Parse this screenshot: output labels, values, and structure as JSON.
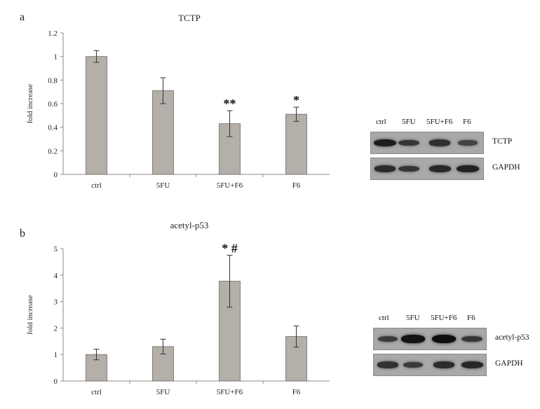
{
  "panels": [
    {
      "letter": "a",
      "chart_data": {
        "type": "bar",
        "title": "TCTP",
        "ylabel": "fold increase",
        "xlabel": "",
        "categories": [
          "ctrl",
          "5FU",
          "5FU+F6",
          "F6"
        ],
        "values": [
          1.0,
          0.71,
          0.43,
          0.51
        ],
        "errors": [
          0.05,
          0.11,
          0.11,
          0.06
        ],
        "annotations": [
          "",
          "",
          "**",
          "*"
        ],
        "ylim": [
          0,
          1.2
        ],
        "yticks": [
          "0",
          "0.2",
          "0.4",
          "0.6",
          "0.8",
          "1",
          "1.2"
        ],
        "tick_values": [
          0,
          0.2,
          0.4,
          0.6,
          0.8,
          1.0,
          1.2
        ],
        "grid": false,
        "legend": "none",
        "bar_color": "#b5afa9"
      },
      "blot": {
        "lanes": [
          "ctrl",
          "5FU",
          "5FU+F6",
          "F6"
        ],
        "rows": [
          {
            "label": "TCTP",
            "intensity": [
              0.85,
              0.6,
              0.65,
              0.45
            ]
          },
          {
            "label": "GAPDH",
            "intensity": [
              0.7,
              0.6,
              0.75,
              0.8
            ]
          }
        ]
      }
    },
    {
      "letter": "b",
      "chart_data": {
        "type": "bar",
        "title": "acetyl-p53",
        "ylabel": "fold increase",
        "xlabel": "",
        "categories": [
          "ctrl",
          "5FU",
          "5FU+F6",
          "F6"
        ],
        "values": [
          1.0,
          1.3,
          3.77,
          1.68
        ],
        "errors": [
          0.2,
          0.28,
          0.98,
          0.4
        ],
        "annotations": [
          "",
          "",
          "* #",
          ""
        ],
        "ylim": [
          0,
          5
        ],
        "yticks": [
          "0",
          "1",
          "2",
          "3",
          "4",
          "5"
        ],
        "tick_values": [
          0,
          1,
          2,
          3,
          4,
          5
        ],
        "grid": false,
        "legend": "none",
        "bar_color": "#b5afa9"
      },
      "blot": {
        "lanes": [
          "ctrl",
          "5FU",
          "5FU+F6",
          "F6"
        ],
        "rows": [
          {
            "label": "acetyl-p53",
            "intensity": [
              0.55,
              0.95,
              1.0,
              0.6
            ]
          },
          {
            "label": "GAPDH",
            "intensity": [
              0.65,
              0.55,
              0.7,
              0.75
            ]
          }
        ]
      }
    }
  ]
}
